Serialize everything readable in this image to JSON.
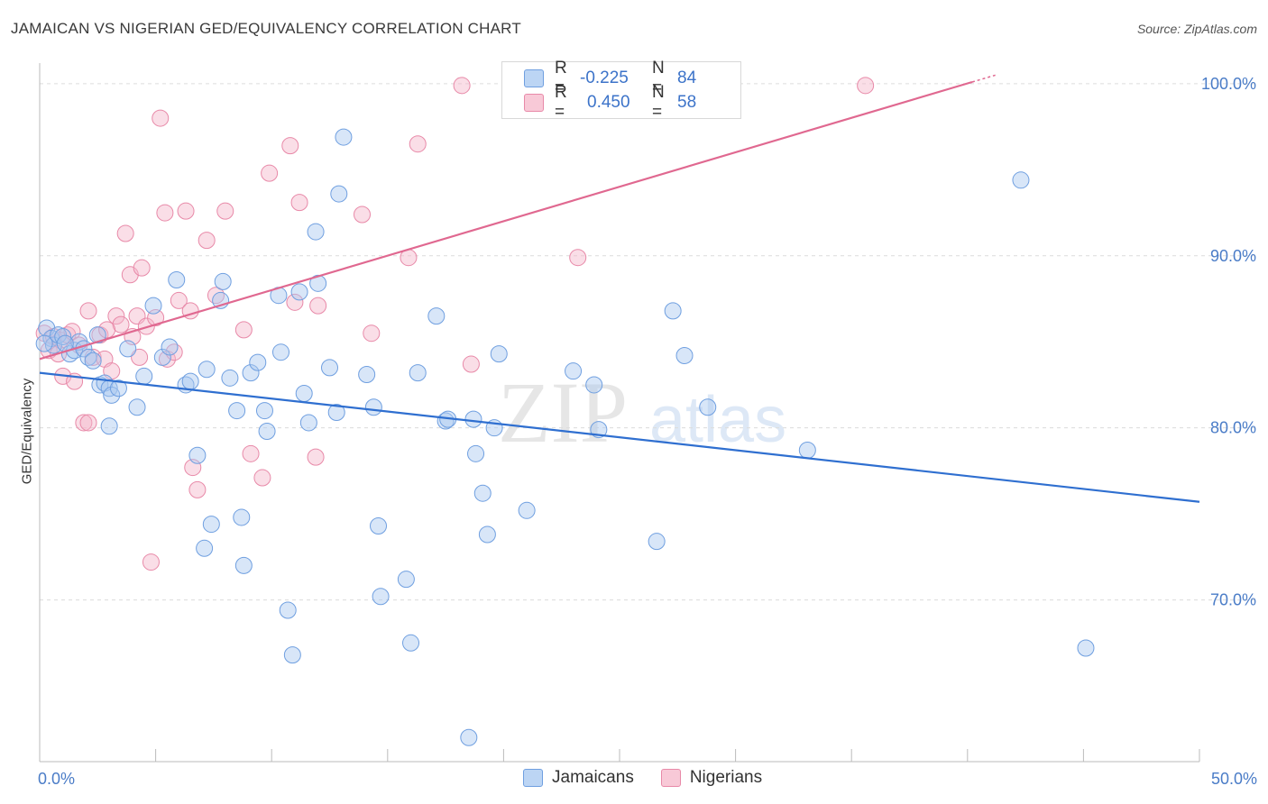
{
  "title": "JAMAICAN VS NIGERIAN GED/EQUIVALENCY CORRELATION CHART",
  "source": "Source: ZipAtlas.com",
  "watermark": {
    "zip": "ZIP",
    "atlas": "atlas"
  },
  "colors": {
    "blue_fill": "#a9c8f0",
    "blue_stroke": "#6f9fe0",
    "blue_line": "#2f6fd0",
    "pink_fill": "#f5b6c9",
    "pink_stroke": "#e889a8",
    "pink_line": "#e06890",
    "tick_text": "#4a7cc7",
    "grid": "#dcdcdc"
  },
  "legend_top": {
    "rows": [
      {
        "r_label": "R =",
        "r_value": "-0.225",
        "n_label": "N =",
        "n_value": "84"
      },
      {
        "r_label": "R =",
        "r_value": "0.450",
        "n_label": "N =",
        "n_value": "58"
      }
    ]
  },
  "legend_bottom": {
    "items": [
      "Jamaicans",
      "Nigerians"
    ]
  },
  "chart_data": {
    "type": "scatter",
    "title": "JAMAICAN VS NIGERIAN GED/EQUIVALENCY CORRELATION CHART",
    "xlabel": "",
    "ylabel": "GED/Equivalency",
    "xlim": [
      0,
      50
    ],
    "ylim": [
      60.6,
      101.2
    ],
    "x_tick_labels": [
      "0.0%",
      "50.0%"
    ],
    "y_ticks": [
      70,
      80,
      90,
      100
    ],
    "y_tick_labels": [
      "70.0%",
      "80.0%",
      "90.0%",
      "100.0%"
    ],
    "grid": true,
    "legend_placement": "bottom-center",
    "series": [
      {
        "name": "Jamaicans",
        "stats": {
          "R": -0.225,
          "N": 84
        },
        "trend": {
          "x": [
            0,
            50
          ],
          "y": [
            83.2,
            75.7
          ]
        },
        "points": [
          [
            0.3,
            85.8
          ],
          [
            0.5,
            85.2
          ],
          [
            0.6,
            84.8
          ],
          [
            0.8,
            85.4
          ],
          [
            1.0,
            85.3
          ],
          [
            1.3,
            84.3
          ],
          [
            1.5,
            84.5
          ],
          [
            1.7,
            85.0
          ],
          [
            1.9,
            84.6
          ],
          [
            2.1,
            84.1
          ],
          [
            2.3,
            83.9
          ],
          [
            2.5,
            85.4
          ],
          [
            2.6,
            82.5
          ],
          [
            2.8,
            82.6
          ],
          [
            3.0,
            82.3
          ],
          [
            3.1,
            81.9
          ],
          [
            3.4,
            82.3
          ],
          [
            3.0,
            80.1
          ],
          [
            3.8,
            84.6
          ],
          [
            4.2,
            81.2
          ],
          [
            4.5,
            83.0
          ],
          [
            4.9,
            87.1
          ],
          [
            5.3,
            84.1
          ],
          [
            5.6,
            84.7
          ],
          [
            5.9,
            88.6
          ],
          [
            6.3,
            82.5
          ],
          [
            6.5,
            82.7
          ],
          [
            6.8,
            78.4
          ],
          [
            7.1,
            73.0
          ],
          [
            7.2,
            83.4
          ],
          [
            7.4,
            74.4
          ],
          [
            7.8,
            87.4
          ],
          [
            7.9,
            88.5
          ],
          [
            8.2,
            82.9
          ],
          [
            8.5,
            81.0
          ],
          [
            8.7,
            74.8
          ],
          [
            8.8,
            72.0
          ],
          [
            9.1,
            83.2
          ],
          [
            9.4,
            83.8
          ],
          [
            9.7,
            81.0
          ],
          [
            9.8,
            79.8
          ],
          [
            10.3,
            87.7
          ],
          [
            10.4,
            84.4
          ],
          [
            10.7,
            69.4
          ],
          [
            10.9,
            66.8
          ],
          [
            11.2,
            87.9
          ],
          [
            11.4,
            82.0
          ],
          [
            11.6,
            80.3
          ],
          [
            11.9,
            91.4
          ],
          [
            12.0,
            88.4
          ],
          [
            12.5,
            83.5
          ],
          [
            12.8,
            80.9
          ],
          [
            12.9,
            93.6
          ],
          [
            13.1,
            96.9
          ],
          [
            14.1,
            83.1
          ],
          [
            14.4,
            81.2
          ],
          [
            14.6,
            74.3
          ],
          [
            14.7,
            70.2
          ],
          [
            15.8,
            71.2
          ],
          [
            16.0,
            67.5
          ],
          [
            16.3,
            83.2
          ],
          [
            17.1,
            86.5
          ],
          [
            17.5,
            80.4
          ],
          [
            17.6,
            80.5
          ],
          [
            18.5,
            62.0
          ],
          [
            18.7,
            80.5
          ],
          [
            18.8,
            78.5
          ],
          [
            19.1,
            76.2
          ],
          [
            19.3,
            73.8
          ],
          [
            19.6,
            80.0
          ],
          [
            19.8,
            84.3
          ],
          [
            21.0,
            75.2
          ],
          [
            23.0,
            83.3
          ],
          [
            23.9,
            82.5
          ],
          [
            24.1,
            79.9
          ],
          [
            26.6,
            73.4
          ],
          [
            27.3,
            86.8
          ],
          [
            27.8,
            84.2
          ],
          [
            28.8,
            81.2
          ],
          [
            33.1,
            78.7
          ],
          [
            42.3,
            94.4
          ],
          [
            45.1,
            67.2
          ],
          [
            0.2,
            84.9
          ],
          [
            1.1,
            84.9
          ]
        ]
      },
      {
        "name": "Nigerians",
        "stats": {
          "R": 0.45,
          "N": 58
        },
        "trend": {
          "x": [
            0,
            40.2
          ],
          "y": [
            84.0,
            100.1
          ]
        },
        "points": [
          [
            0.2,
            85.5
          ],
          [
            0.4,
            84.5
          ],
          [
            0.6,
            85.3
          ],
          [
            0.9,
            85.1
          ],
          [
            1.0,
            83.0
          ],
          [
            1.2,
            85.4
          ],
          [
            1.4,
            85.6
          ],
          [
            1.7,
            84.8
          ],
          [
            1.9,
            80.3
          ],
          [
            2.1,
            80.3
          ],
          [
            2.1,
            86.8
          ],
          [
            2.3,
            84.1
          ],
          [
            2.6,
            85.4
          ],
          [
            2.8,
            84.0
          ],
          [
            3.1,
            83.3
          ],
          [
            3.3,
            86.5
          ],
          [
            3.5,
            86.0
          ],
          [
            3.7,
            91.3
          ],
          [
            3.9,
            88.9
          ],
          [
            4.0,
            85.3
          ],
          [
            4.2,
            86.5
          ],
          [
            4.4,
            89.3
          ],
          [
            4.6,
            85.9
          ],
          [
            4.8,
            72.2
          ],
          [
            5.0,
            86.4
          ],
          [
            5.2,
            98.0
          ],
          [
            5.4,
            92.5
          ],
          [
            5.5,
            84.0
          ],
          [
            5.8,
            84.4
          ],
          [
            6.0,
            87.4
          ],
          [
            6.3,
            92.6
          ],
          [
            6.5,
            86.8
          ],
          [
            6.6,
            77.7
          ],
          [
            6.8,
            76.4
          ],
          [
            7.2,
            90.9
          ],
          [
            7.6,
            87.7
          ],
          [
            8.0,
            92.6
          ],
          [
            8.8,
            85.7
          ],
          [
            9.1,
            78.5
          ],
          [
            9.6,
            77.1
          ],
          [
            9.9,
            94.8
          ],
          [
            10.8,
            96.4
          ],
          [
            11.0,
            87.3
          ],
          [
            11.2,
            93.1
          ],
          [
            11.9,
            78.3
          ],
          [
            12.0,
            87.1
          ],
          [
            13.9,
            92.4
          ],
          [
            14.3,
            85.5
          ],
          [
            15.9,
            89.9
          ],
          [
            16.3,
            96.5
          ],
          [
            18.2,
            99.9
          ],
          [
            18.6,
            83.7
          ],
          [
            23.2,
            89.9
          ],
          [
            35.6,
            99.9
          ],
          [
            1.5,
            82.7
          ],
          [
            0.8,
            84.3
          ],
          [
            2.9,
            85.7
          ],
          [
            4.3,
            84.1
          ]
        ]
      }
    ]
  }
}
